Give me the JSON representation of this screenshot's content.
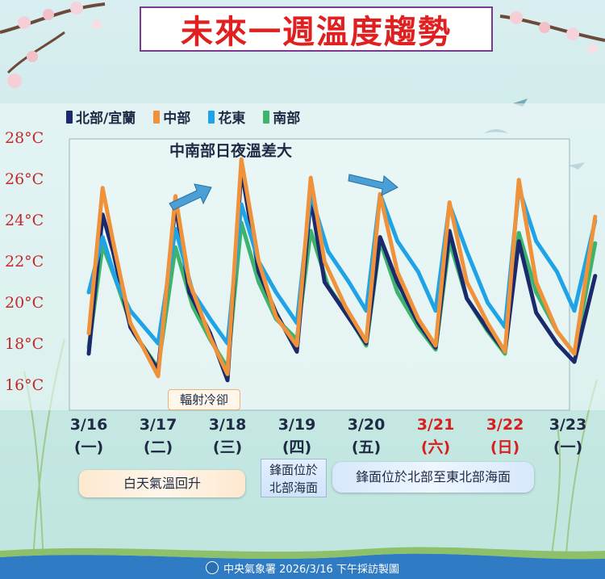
{
  "title": "未來一週溫度趨勢",
  "annotation_main": "中南部日夜溫差大",
  "annotation_cooling": "輻射冷卻",
  "notes": {
    "warming": "白天氣溫回升",
    "front_short_line1": "鋒面位於",
    "front_short_line2": "北部海面",
    "front_long": "鋒面位於北部至東北部海面"
  },
  "credit": "中央氣象署  2026/3/16  下午採訪製圖",
  "icons": [
    "plum-blossom-icon",
    "swallow-icon",
    "arrow-right-icon",
    "cwa-logo-icon"
  ],
  "colors": {
    "north": "#1a2a6c",
    "central": "#f0923a",
    "east": "#1fa3e6",
    "south": "#3db36b",
    "title": "#e02020",
    "temp_label": "#c6282a",
    "weekend": "#d62020"
  },
  "chart_data": {
    "type": "line",
    "y_unit": "°C",
    "ylim": [
      16,
      28
    ],
    "y_ticks": [
      "16°C",
      "18°C",
      "20°C",
      "22°C",
      "24°C",
      "26°C",
      "28°C"
    ],
    "x_ticks": [
      {
        "date": "3/16",
        "day": "(一)",
        "weekend": false
      },
      {
        "date": "3/17",
        "day": "(二)",
        "weekend": false
      },
      {
        "date": "3/18",
        "day": "(三)",
        "weekend": false
      },
      {
        "date": "3/19",
        "day": "(四)",
        "weekend": false
      },
      {
        "date": "3/20",
        "day": "(五)",
        "weekend": false
      },
      {
        "date": "3/21",
        "day": "(六)",
        "weekend": true
      },
      {
        "date": "3/22",
        "day": "(日)",
        "weekend": true
      },
      {
        "date": "3/23",
        "day": "(一)",
        "weekend": false
      }
    ],
    "x_day_range": [
      0,
      7.3
    ],
    "series": [
      {
        "name": "北部/宜蘭",
        "key": "north",
        "points": [
          [
            0,
            17.5
          ],
          [
            0.2,
            24.3
          ],
          [
            0.35,
            22.5
          ],
          [
            0.6,
            18.8
          ],
          [
            1.0,
            16.7
          ],
          [
            1.25,
            24.8
          ],
          [
            1.45,
            20.5
          ],
          [
            1.75,
            18.5
          ],
          [
            2.0,
            16.2
          ],
          [
            2.2,
            26.5
          ],
          [
            2.45,
            21.5
          ],
          [
            2.7,
            19.5
          ],
          [
            3.0,
            17.6
          ],
          [
            3.2,
            25.1
          ],
          [
            3.4,
            21.0
          ],
          [
            3.7,
            19.5
          ],
          [
            4.0,
            18.0
          ],
          [
            4.2,
            23.2
          ],
          [
            4.45,
            21.0
          ],
          [
            4.75,
            19.0
          ],
          [
            5.0,
            17.8
          ],
          [
            5.2,
            23.5
          ],
          [
            5.45,
            20.2
          ],
          [
            5.75,
            18.7
          ],
          [
            6.0,
            17.6
          ],
          [
            6.2,
            23.0
          ],
          [
            6.45,
            19.5
          ],
          [
            6.75,
            18.0
          ],
          [
            7.0,
            17.1
          ],
          [
            7.3,
            21.3
          ]
        ]
      },
      {
        "name": "中部",
        "key": "central",
        "points": [
          [
            0,
            18.5
          ],
          [
            0.2,
            25.6
          ],
          [
            0.35,
            23.0
          ],
          [
            0.6,
            19.0
          ],
          [
            1.0,
            16.4
          ],
          [
            1.25,
            25.2
          ],
          [
            1.45,
            21.0
          ],
          [
            1.75,
            18.3
          ],
          [
            2.0,
            16.5
          ],
          [
            2.2,
            27.0
          ],
          [
            2.45,
            22.0
          ],
          [
            2.7,
            19.3
          ],
          [
            3.0,
            17.9
          ],
          [
            3.2,
            26.1
          ],
          [
            3.4,
            22.0
          ],
          [
            3.7,
            19.8
          ],
          [
            4.0,
            18.1
          ],
          [
            4.2,
            25.3
          ],
          [
            4.45,
            21.5
          ],
          [
            4.75,
            19.2
          ],
          [
            5.0,
            17.9
          ],
          [
            5.2,
            24.9
          ],
          [
            5.45,
            21.0
          ],
          [
            5.75,
            19.0
          ],
          [
            6.0,
            17.6
          ],
          [
            6.2,
            26.0
          ],
          [
            6.45,
            21.0
          ],
          [
            6.75,
            18.6
          ],
          [
            7.0,
            17.5
          ],
          [
            7.3,
            24.2
          ]
        ]
      },
      {
        "name": "花東",
        "key": "east",
        "points": [
          [
            0,
            20.5
          ],
          [
            0.2,
            23.2
          ],
          [
            0.4,
            21.0
          ],
          [
            0.6,
            19.6
          ],
          [
            1.0,
            18.0
          ],
          [
            1.25,
            23.6
          ],
          [
            1.5,
            20.5
          ],
          [
            1.75,
            19.2
          ],
          [
            2.0,
            18.0
          ],
          [
            2.2,
            24.8
          ],
          [
            2.45,
            22.0
          ],
          [
            2.7,
            20.5
          ],
          [
            3.0,
            19.0
          ],
          [
            3.2,
            25.3
          ],
          [
            3.45,
            22.5
          ],
          [
            3.75,
            21.0
          ],
          [
            4.0,
            19.6
          ],
          [
            4.2,
            25.3
          ],
          [
            4.45,
            23.0
          ],
          [
            4.75,
            21.5
          ],
          [
            5.0,
            19.6
          ],
          [
            5.2,
            24.8
          ],
          [
            5.45,
            22.5
          ],
          [
            5.75,
            20.0
          ],
          [
            6.0,
            18.8
          ],
          [
            6.2,
            25.6
          ],
          [
            6.45,
            23.0
          ],
          [
            6.75,
            21.5
          ],
          [
            7.0,
            19.6
          ],
          [
            7.3,
            24.0
          ]
        ]
      },
      {
        "name": "南部",
        "key": "south",
        "points": [
          [
            0,
            17.8
          ],
          [
            0.2,
            22.8
          ],
          [
            0.4,
            21.0
          ],
          [
            0.65,
            18.5
          ],
          [
            1.0,
            16.8
          ],
          [
            1.25,
            22.7
          ],
          [
            1.5,
            19.8
          ],
          [
            1.75,
            18.2
          ],
          [
            2.0,
            16.8
          ],
          [
            2.2,
            23.9
          ],
          [
            2.45,
            21.0
          ],
          [
            2.7,
            19.2
          ],
          [
            3.0,
            18.2
          ],
          [
            3.2,
            23.5
          ],
          [
            3.45,
            20.8
          ],
          [
            3.75,
            19.3
          ],
          [
            4.0,
            17.9
          ],
          [
            4.2,
            23.0
          ],
          [
            4.45,
            20.5
          ],
          [
            4.75,
            18.8
          ],
          [
            5.0,
            17.7
          ],
          [
            5.2,
            23.0
          ],
          [
            5.45,
            20.2
          ],
          [
            5.75,
            18.6
          ],
          [
            6.0,
            17.5
          ],
          [
            6.2,
            23.4
          ],
          [
            6.45,
            20.5
          ],
          [
            6.75,
            18.6
          ],
          [
            7.0,
            17.5
          ],
          [
            7.3,
            22.9
          ]
        ]
      }
    ]
  }
}
